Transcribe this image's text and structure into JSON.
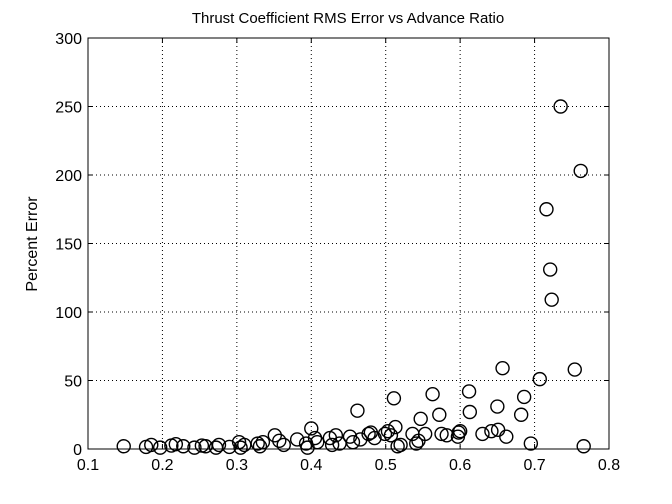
{
  "chart_data": {
    "type": "scatter",
    "title": "Thrust Coefficient RMS Error vs Advance Ratio",
    "xlabel": "",
    "ylabel": "Percent Error",
    "xlim": [
      0.1,
      0.8
    ],
    "ylim": [
      0,
      300
    ],
    "xticks": [
      "0.1",
      "0.2",
      "0.3",
      "0.4",
      "0.5",
      "0.6",
      "0.7",
      "0.8"
    ],
    "yticks": [
      "0",
      "50",
      "100",
      "150",
      "200",
      "250",
      "300"
    ],
    "grid": true,
    "marker": "open-circle",
    "series": [
      {
        "points": [
          [
            0.148,
            2
          ],
          [
            0.178,
            1.5
          ],
          [
            0.185,
            3
          ],
          [
            0.197,
            1
          ],
          [
            0.212,
            2.5
          ],
          [
            0.218,
            3.5
          ],
          [
            0.228,
            2
          ],
          [
            0.243,
            1
          ],
          [
            0.253,
            2.5
          ],
          [
            0.258,
            2
          ],
          [
            0.272,
            1
          ],
          [
            0.276,
            3
          ],
          [
            0.29,
            1.5
          ],
          [
            0.303,
            5
          ],
          [
            0.305,
            1
          ],
          [
            0.31,
            3
          ],
          [
            0.328,
            4
          ],
          [
            0.331,
            2
          ],
          [
            0.335,
            5
          ],
          [
            0.351,
            10
          ],
          [
            0.357,
            6
          ],
          [
            0.363,
            3
          ],
          [
            0.381,
            7
          ],
          [
            0.393,
            4
          ],
          [
            0.395,
            1
          ],
          [
            0.4,
            15
          ],
          [
            0.405,
            8
          ],
          [
            0.408,
            5
          ],
          [
            0.425,
            8
          ],
          [
            0.428,
            3
          ],
          [
            0.433,
            10
          ],
          [
            0.438,
            4
          ],
          [
            0.452,
            9
          ],
          [
            0.456,
            5
          ],
          [
            0.462,
            28
          ],
          [
            0.466,
            7
          ],
          [
            0.477,
            11
          ],
          [
            0.48,
            12
          ],
          [
            0.485,
            8
          ],
          [
            0.499,
            11
          ],
          [
            0.503,
            13
          ],
          [
            0.507,
            10
          ],
          [
            0.511,
            37
          ],
          [
            0.513,
            16
          ],
          [
            0.516,
            2
          ],
          [
            0.52,
            3
          ],
          [
            0.536,
            11
          ],
          [
            0.541,
            4
          ],
          [
            0.544,
            6
          ],
          [
            0.547,
            22
          ],
          [
            0.553,
            11
          ],
          [
            0.563,
            40
          ],
          [
            0.572,
            25
          ],
          [
            0.575,
            11
          ],
          [
            0.582,
            10
          ],
          [
            0.597,
            9
          ],
          [
            0.598,
            12
          ],
          [
            0.6,
            13
          ],
          [
            0.612,
            42
          ],
          [
            0.613,
            27
          ],
          [
            0.63,
            11
          ],
          [
            0.642,
            13
          ],
          [
            0.65,
            31
          ],
          [
            0.651,
            14
          ],
          [
            0.657,
            59
          ],
          [
            0.662,
            9
          ],
          [
            0.682,
            25
          ],
          [
            0.686,
            38
          ],
          [
            0.695,
            4
          ],
          [
            0.707,
            51
          ],
          [
            0.716,
            175
          ],
          [
            0.721,
            131
          ],
          [
            0.723,
            109
          ],
          [
            0.735,
            250
          ],
          [
            0.754,
            58
          ],
          [
            0.762,
            203
          ],
          [
            0.766,
            2
          ]
        ]
      }
    ]
  }
}
